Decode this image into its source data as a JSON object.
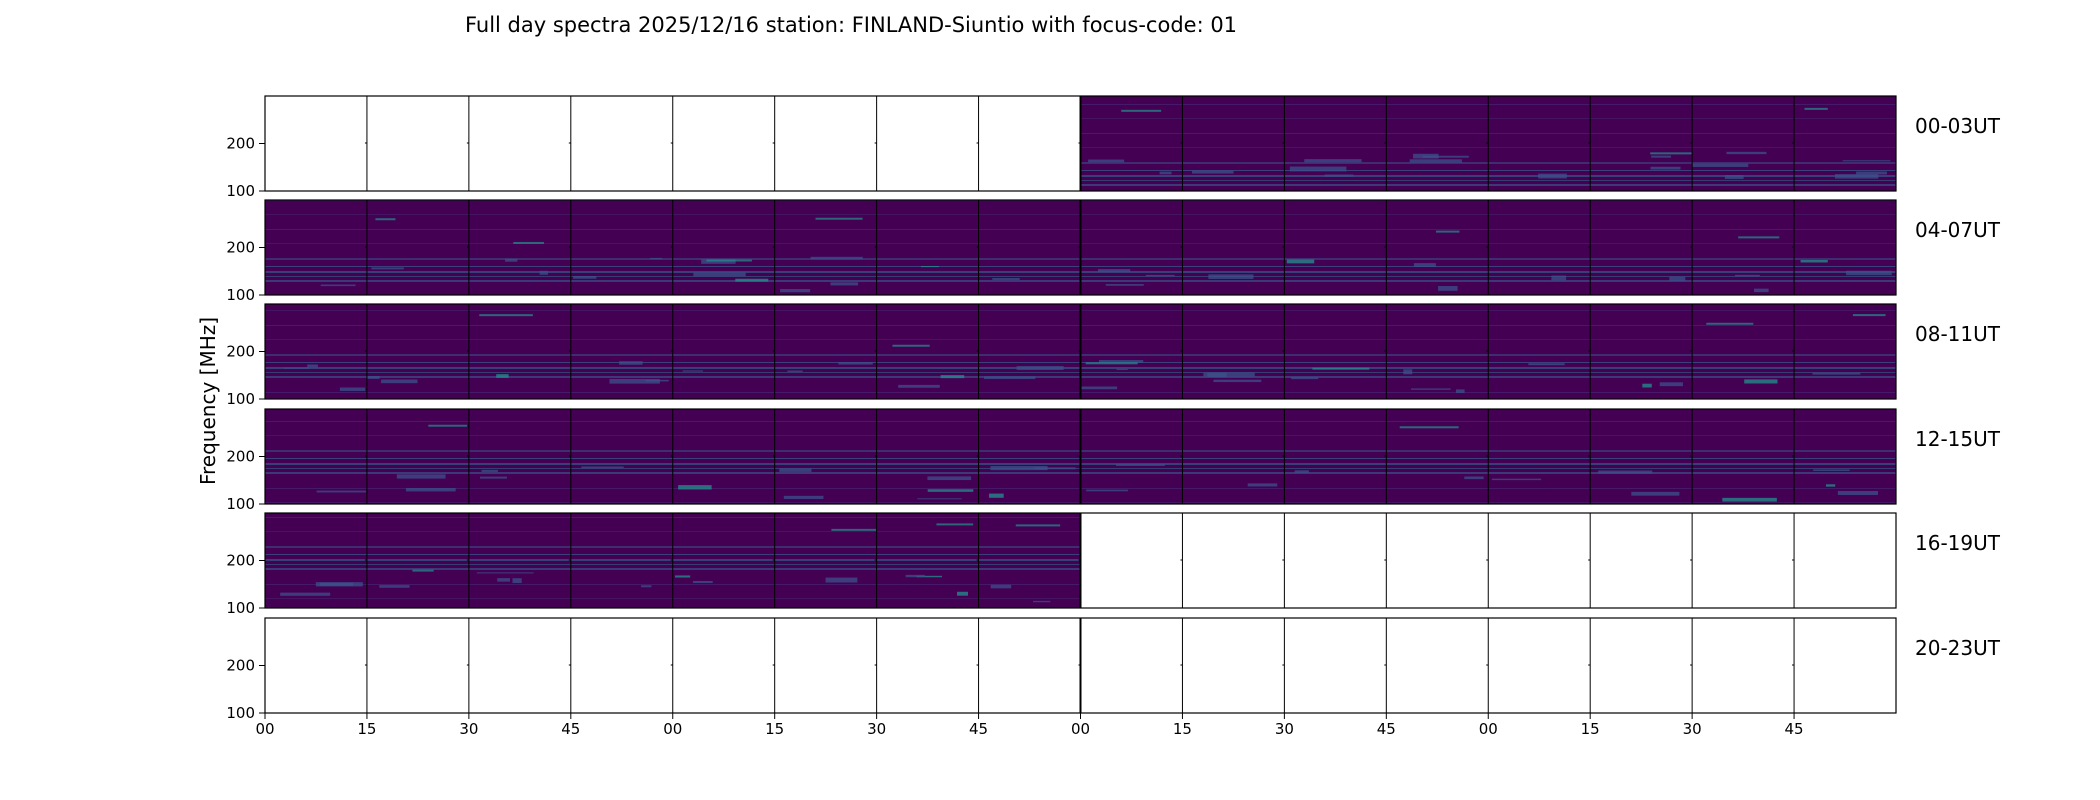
{
  "chart_data": {
    "type": "heatmap",
    "title": "Full day spectra 2025/12/16 station: FINLAND-Siuntio with focus-code: 01",
    "ylabel": "Frequency [MHz]",
    "xlabel": "",
    "y_tick_labels": [
      "100",
      "200"
    ],
    "x_tick_labels": [
      "00",
      "15",
      "30",
      "45",
      "00",
      "15",
      "30",
      "45",
      "00",
      "15",
      "30",
      "45",
      "00",
      "15",
      "30",
      "45"
    ],
    "ylim": [
      100,
      300
    ],
    "colormap": "viridis",
    "rows": [
      {
        "label": "00-03UT",
        "has_data": [
          false,
          false,
          false,
          false,
          false,
          false,
          false,
          false,
          true,
          true,
          true,
          true,
          true,
          true,
          true,
          true
        ]
      },
      {
        "label": "04-07UT",
        "has_data": [
          true,
          true,
          true,
          true,
          true,
          true,
          true,
          true,
          true,
          true,
          true,
          true,
          true,
          true,
          true,
          true
        ]
      },
      {
        "label": "08-11UT",
        "has_data": [
          true,
          true,
          true,
          true,
          true,
          true,
          true,
          true,
          true,
          true,
          true,
          true,
          true,
          true,
          true,
          true
        ]
      },
      {
        "label": "12-15UT",
        "has_data": [
          true,
          true,
          true,
          true,
          true,
          true,
          true,
          true,
          true,
          true,
          true,
          true,
          true,
          true,
          true,
          true
        ]
      },
      {
        "label": "16-19UT",
        "has_data": [
          true,
          true,
          true,
          true,
          true,
          true,
          true,
          true,
          false,
          false,
          false,
          false,
          false,
          false,
          false,
          false
        ]
      },
      {
        "label": "20-23UT",
        "has_data": [
          false,
          false,
          false,
          false,
          false,
          false,
          false,
          false,
          false,
          false,
          false,
          false,
          false,
          false,
          false,
          false
        ]
      }
    ],
    "colors": {
      "background": "#440154",
      "mid": "#3b528b",
      "bright": "#21918c",
      "hot": "#5ec962",
      "frame": "#000000"
    }
  }
}
